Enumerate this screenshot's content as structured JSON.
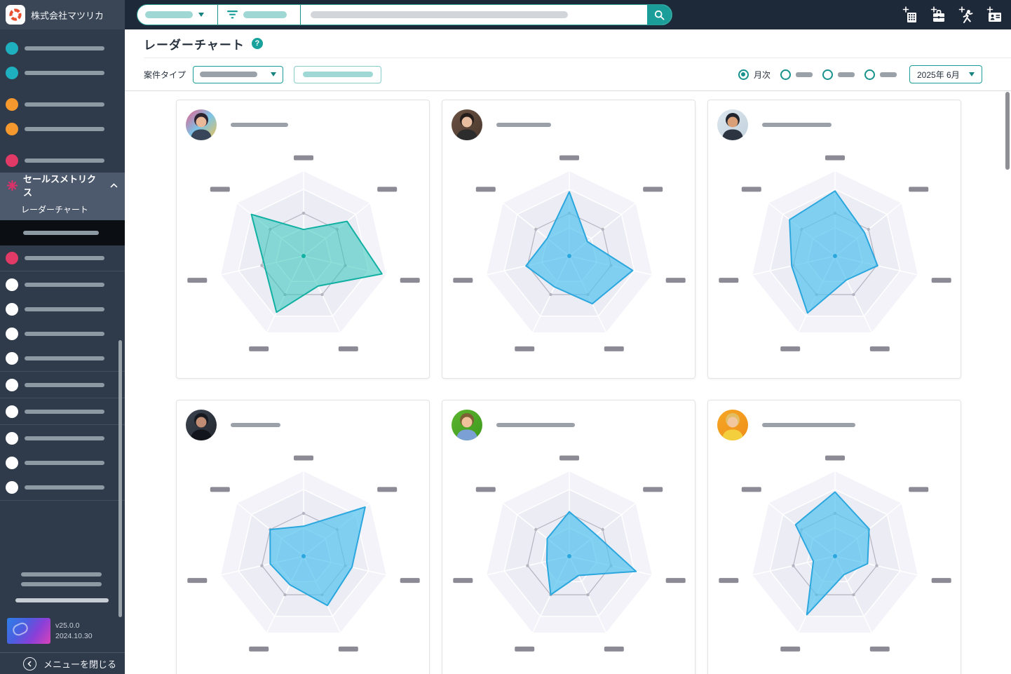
{
  "app": {
    "accent_teal": "#1b9e99",
    "topbar_bg": "#1d2938",
    "sidebar_bg": "#2f3a4b"
  },
  "sidebar": {
    "company_name": "株式会社マツリカ",
    "items": [
      {
        "t": "item",
        "color": "#1fb0c0"
      },
      {
        "t": "item",
        "color": "#1fb0c0"
      },
      {
        "t": "gap"
      },
      {
        "t": "item",
        "color": "#f5992e"
      },
      {
        "t": "item",
        "color": "#f5992e"
      },
      {
        "t": "gap"
      },
      {
        "t": "item",
        "color": "#e13a66"
      },
      {
        "t": "sales"
      },
      {
        "t": "item",
        "color": "#e13a66"
      },
      {
        "t": "div"
      },
      {
        "t": "item",
        "color": "#ffffff"
      },
      {
        "t": "item",
        "color": "#ffffff"
      },
      {
        "t": "item",
        "color": "#ffffff"
      },
      {
        "t": "item",
        "color": "#ffffff"
      },
      {
        "t": "div"
      },
      {
        "t": "item",
        "color": "#ffffff"
      },
      {
        "t": "div"
      },
      {
        "t": "item",
        "color": "#ffffff"
      },
      {
        "t": "div"
      },
      {
        "t": "item",
        "color": "#ffffff"
      },
      {
        "t": "item",
        "color": "#ffffff"
      },
      {
        "t": "item",
        "color": "#ffffff"
      },
      {
        "t": "div"
      }
    ],
    "sales_group": {
      "label": "セールスメトリクス",
      "icon": "burst-star-icon",
      "icon_color": "#d8326a",
      "children": [
        {
          "label": "レーダーチャート"
        },
        {
          "label_redacted": true,
          "active": true
        }
      ]
    },
    "footer": {
      "version": "v25.0.0",
      "date": "2024.10.30",
      "close_label": "メニューを閉じる"
    }
  },
  "topbar": {
    "search": {
      "scope_redacted": true,
      "filter_redacted": true,
      "query_redacted": true
    },
    "icons": [
      {
        "name": "add-company-icon"
      },
      {
        "name": "add-deal-icon"
      },
      {
        "name": "add-action-icon"
      },
      {
        "name": "add-contact-icon"
      }
    ]
  },
  "page": {
    "title": "レーダーチャート",
    "help_icon": "?"
  },
  "filters": {
    "case_type_label": "案件タイプ",
    "periods": [
      {
        "label": "月次",
        "selected": true
      },
      {
        "label_redacted": true,
        "selected": false
      },
      {
        "label_redacted": true,
        "selected": false
      },
      {
        "label_redacted": true,
        "selected": false
      }
    ],
    "date_value": "2025年 6月"
  },
  "chart_data": {
    "type": "radar",
    "axes_count": 7,
    "axis_order_clockwise_from_top": [
      "top",
      "upper-right",
      "right",
      "lower-right",
      "lower-left",
      "left",
      "upper-left"
    ],
    "axis_labels": "redacted",
    "value_scale": [
      0,
      100
    ],
    "reference_series": {
      "values_all_axes": 50,
      "color": "#b4b4c0",
      "style": "line-with-dots"
    },
    "grid": {
      "bands": [
        1.0,
        0.78,
        0.33
      ],
      "band_colors": [
        "#f3f3f9",
        "#ececf4",
        "#e6e6f0"
      ],
      "spoke_color": "#ffffff"
    },
    "cards": [
      {
        "person": "redacted",
        "name_bar_width": 82,
        "stroke": "#12b0a3",
        "fill": "rgba(47,199,185,0.55)",
        "values": [
          31,
          65,
          94,
          39,
          73,
          47,
          78
        ],
        "avatar": {
          "bg": [
            "#e85d8a",
            "#7bc4e8",
            "#f2c14e"
          ],
          "hair": "#2b2330",
          "skin": "#eab999",
          "shirt": "#39465a"
        }
      },
      {
        "person": "redacted",
        "name_bar_width": 78,
        "stroke": "#2ba7de",
        "fill": "rgba(86,195,240,0.72)",
        "values": [
          75,
          27,
          76,
          62,
          40,
          52,
          33
        ],
        "avatar": {
          "bg": [
            "#6b5243",
            "#4a382e"
          ],
          "hair": "#241d1b",
          "skin": "#e9bd9f",
          "shirt": "#2c2c2c"
        }
      },
      {
        "person": "redacted",
        "name_bar_width": 99,
        "stroke": "#2ba7de",
        "fill": "rgba(86,195,240,0.72)",
        "values": [
          76,
          44,
          51,
          31,
          74,
          52,
          68
        ],
        "avatar": {
          "bg": [
            "#dde6ed",
            "#c2d2de"
          ],
          "hair": "#23252e",
          "skin": "#d9a077",
          "shirt": "#2c3442"
        }
      },
      {
        "person": "redacted",
        "name_bar_width": 71,
        "stroke": "#2ba7de",
        "fill": "rgba(86,195,240,0.72)",
        "values": [
          35,
          92,
          58,
          64,
          37,
          40,
          50
        ],
        "avatar": {
          "bg": [
            "#3c4450",
            "#23272e"
          ],
          "hair": "#171920",
          "skin": "#c08d74",
          "shirt": "#12151b"
        }
      },
      {
        "person": "redacted",
        "name_bar_width": 112,
        "stroke": "#2ba7de",
        "fill": "rgba(86,195,240,0.72)",
        "values": [
          52,
          40,
          80,
          25,
          50,
          27,
          33
        ],
        "avatar": {
          "bg": [
            "#5bb52e",
            "#3f9a1e"
          ],
          "hair": "#7d6134",
          "skin": "#efc29c",
          "shirt": "#7aa0d6"
        }
      },
      {
        "person": "redacted",
        "name_bar_width": 133,
        "stroke": "#2ba7de",
        "fill": "rgba(86,195,240,0.72)",
        "values": [
          75,
          51,
          39,
          24,
          76,
          26,
          59
        ],
        "avatar": {
          "bg": [
            "#f5a623",
            "#ef8f1c"
          ],
          "hair": "#e3bd62",
          "skin": "#f2c79f",
          "shirt": "#f3cf3e"
        }
      }
    ]
  }
}
